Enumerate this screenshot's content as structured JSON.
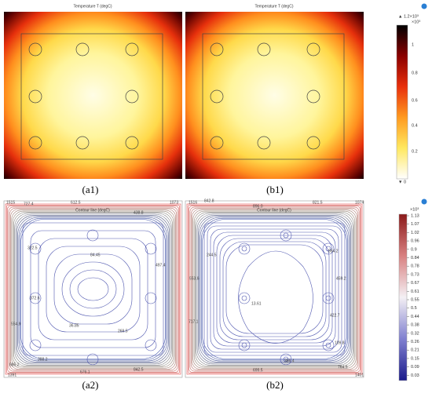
{
  "panels": [
    {
      "title": "Temperature T (degC)",
      "caption": "(a1)"
    },
    {
      "title": "Temperature T (degC)",
      "caption": "(b1)"
    },
    {
      "title": "Contour line (degC)",
      "caption": "(a2)",
      "labels": [
        "1515",
        "727.4",
        "612.5",
        "1073",
        "438.8",
        "322.5",
        "84.45",
        "497.4",
        "372.6",
        "554.9",
        "36.85",
        "269.5",
        "388.2",
        "885.2",
        "1391",
        "676.1",
        "842.5"
      ]
    },
    {
      "title": "Contour line (degC)",
      "caption": "(b2)",
      "labels": [
        "1516",
        "842.8",
        "896.0",
        "821.5",
        "1074",
        "244.5",
        "854.2",
        "553.6",
        "459.2",
        "13.61",
        "422.7",
        "717.1",
        "109.8",
        "386.4",
        "699.5",
        "764.9",
        "1401"
      ]
    }
  ],
  "colorbar_top": {
    "max": "▲ 1.2×10³",
    "scale": "×10³",
    "ticks": [
      "1",
      "0.8",
      "0.6",
      "0.4",
      "0.2"
    ],
    "min": "▼ 0"
  },
  "colorbar_bottom": {
    "scale": "×10³",
    "ticks": [
      "1.13",
      "1.07",
      "1.02",
      "0.96",
      "0.9",
      "0.84",
      "0.78",
      "0.73",
      "0.67",
      "0.61",
      "0.55",
      "0.5",
      "0.44",
      "0.38",
      "0.32",
      "0.26",
      "0.21",
      "0.15",
      "0.09",
      "0.03"
    ]
  }
}
